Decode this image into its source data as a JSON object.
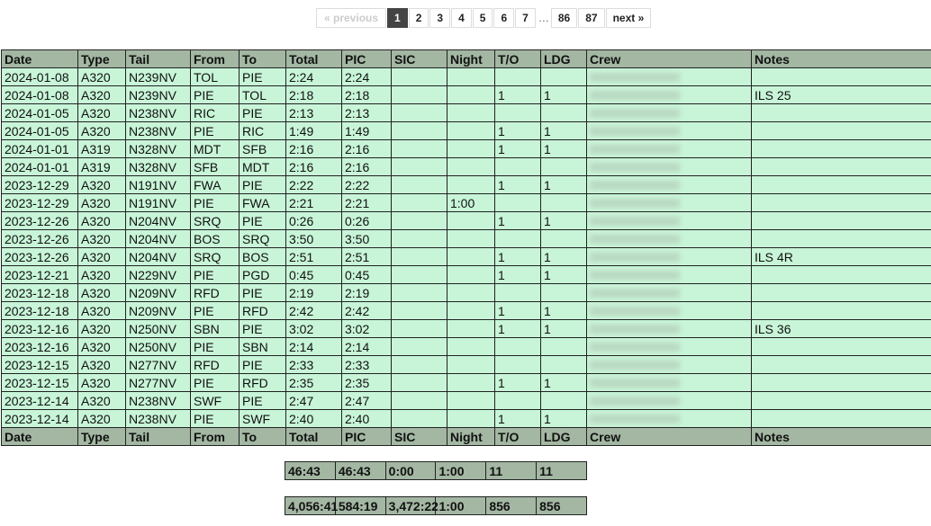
{
  "pagination": {
    "previous": "« previous",
    "pages": [
      "1",
      "2",
      "3",
      "4",
      "5",
      "6",
      "7"
    ],
    "ellipsis": "…",
    "last_pages": [
      "86",
      "87"
    ],
    "next": "next »",
    "current": "1"
  },
  "columns": [
    "Date",
    "Type",
    "Tail",
    "From",
    "To",
    "Total",
    "PIC",
    "SIC",
    "Night",
    "T/O",
    "LDG",
    "Crew",
    "Notes"
  ],
  "rows": [
    [
      "2024-01-08",
      "A320",
      "N239NV",
      "TOL",
      "PIE",
      "2:24",
      "2:24",
      "",
      "",
      "",
      "",
      "",
      ""
    ],
    [
      "2024-01-08",
      "A320",
      "N239NV",
      "PIE",
      "TOL",
      "2:18",
      "2:18",
      "",
      "",
      "1",
      "1",
      "",
      "ILS 25"
    ],
    [
      "2024-01-05",
      "A320",
      "N238NV",
      "RIC",
      "PIE",
      "2:13",
      "2:13",
      "",
      "",
      "",
      "",
      "",
      ""
    ],
    [
      "2024-01-05",
      "A320",
      "N238NV",
      "PIE",
      "RIC",
      "1:49",
      "1:49",
      "",
      "",
      "1",
      "1",
      "",
      ""
    ],
    [
      "2024-01-01",
      "A319",
      "N328NV",
      "MDT",
      "SFB",
      "2:16",
      "2:16",
      "",
      "",
      "1",
      "1",
      "",
      ""
    ],
    [
      "2024-01-01",
      "A319",
      "N328NV",
      "SFB",
      "MDT",
      "2:16",
      "2:16",
      "",
      "",
      "",
      "",
      "",
      ""
    ],
    [
      "2023-12-29",
      "A320",
      "N191NV",
      "FWA",
      "PIE",
      "2:22",
      "2:22",
      "",
      "",
      "1",
      "1",
      "",
      ""
    ],
    [
      "2023-12-29",
      "A320",
      "N191NV",
      "PIE",
      "FWA",
      "2:21",
      "2:21",
      "",
      "1:00",
      "",
      "",
      "",
      ""
    ],
    [
      "2023-12-26",
      "A320",
      "N204NV",
      "SRQ",
      "PIE",
      "0:26",
      "0:26",
      "",
      "",
      "1",
      "1",
      "",
      ""
    ],
    [
      "2023-12-26",
      "A320",
      "N204NV",
      "BOS",
      "SRQ",
      "3:50",
      "3:50",
      "",
      "",
      "",
      "",
      "",
      ""
    ],
    [
      "2023-12-26",
      "A320",
      "N204NV",
      "SRQ",
      "BOS",
      "2:51",
      "2:51",
      "",
      "",
      "1",
      "1",
      "",
      "ILS 4R"
    ],
    [
      "2023-12-21",
      "A320",
      "N229NV",
      "PIE",
      "PGD",
      "0:45",
      "0:45",
      "",
      "",
      "1",
      "1",
      "",
      ""
    ],
    [
      "2023-12-18",
      "A320",
      "N209NV",
      "RFD",
      "PIE",
      "2:19",
      "2:19",
      "",
      "",
      "",
      "",
      "",
      ""
    ],
    [
      "2023-12-18",
      "A320",
      "N209NV",
      "PIE",
      "RFD",
      "2:42",
      "2:42",
      "",
      "",
      "1",
      "1",
      "",
      ""
    ],
    [
      "2023-12-16",
      "A320",
      "N250NV",
      "SBN",
      "PIE",
      "3:02",
      "3:02",
      "",
      "",
      "1",
      "1",
      "",
      "ILS 36"
    ],
    [
      "2023-12-16",
      "A320",
      "N250NV",
      "PIE",
      "SBN",
      "2:14",
      "2:14",
      "",
      "",
      "",
      "",
      "",
      ""
    ],
    [
      "2023-12-15",
      "A320",
      "N277NV",
      "RFD",
      "PIE",
      "2:33",
      "2:33",
      "",
      "",
      "",
      "",
      "",
      ""
    ],
    [
      "2023-12-15",
      "A320",
      "N277NV",
      "PIE",
      "RFD",
      "2:35",
      "2:35",
      "",
      "",
      "1",
      "1",
      "",
      ""
    ],
    [
      "2023-12-14",
      "A320",
      "N238NV",
      "SWF",
      "PIE",
      "2:47",
      "2:47",
      "",
      "",
      "",
      "",
      "",
      ""
    ],
    [
      "2023-12-14",
      "A320",
      "N238NV",
      "PIE",
      "SWF",
      "2:40",
      "2:40",
      "",
      "",
      "1",
      "1",
      "",
      ""
    ]
  ],
  "page_totals": [
    "46:43",
    "46:43",
    "0:00",
    "1:00",
    "11",
    "11"
  ],
  "grand_totals": [
    "4,056:41",
    "584:19",
    "3,472:22",
    "1:00",
    "856",
    "856"
  ],
  "colors": {
    "header": "#a3b7a3",
    "row": "#c8f5d8",
    "active_page": "#444444"
  }
}
